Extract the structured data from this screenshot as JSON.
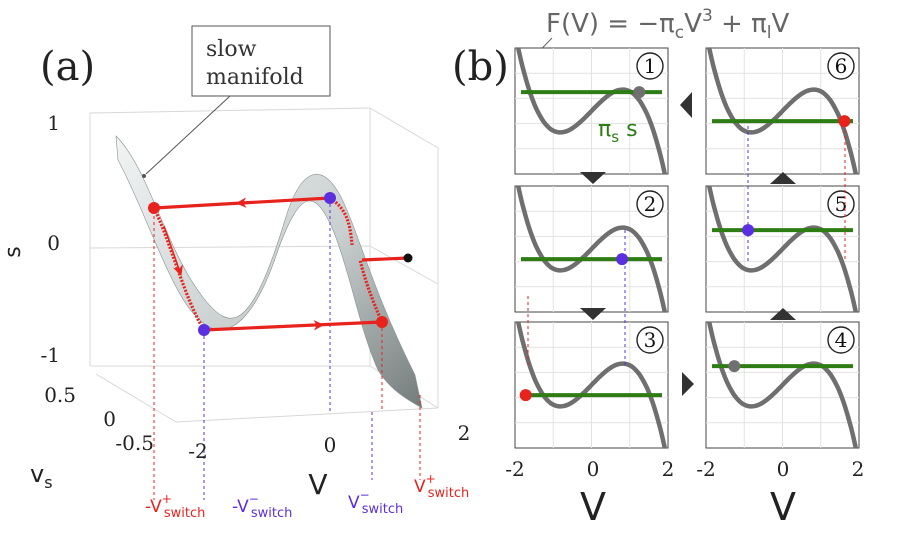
{
  "figure": {
    "panel_a_label": "(a)",
    "panel_b_label": "(b)",
    "formula_parts": {
      "lhs": "F(V) = −π",
      "sub_c": "c",
      "mid": "V",
      "sup3": "3",
      "plus": " + π",
      "sub_l": "l",
      "end": "V"
    },
    "pi_s_label": "π",
    "pi_s_sub": "s",
    "pi_s_after": " s"
  },
  "panel_a": {
    "callout": [
      "slow",
      "manifold"
    ],
    "axes": {
      "z_label": "s",
      "z_ticks": [
        "1",
        "0",
        "-1"
      ],
      "y_label_main": "v",
      "y_label_sub": "s",
      "y_ticks": [
        "0.5",
        "0",
        "-0.5"
      ],
      "x_label": "V",
      "x_ticks": [
        "-2",
        "0",
        "2"
      ]
    },
    "switch_labels": [
      {
        "prefix": "-V",
        "sup": "+",
        "sub": "switch",
        "color": "#e8231d"
      },
      {
        "prefix": "-V",
        "sup": "−",
        "sub": "switch",
        "color": "#5b2fe0"
      },
      {
        "prefix": "V",
        "sup": "−",
        "sub": "switch",
        "color": "#5b2fe0"
      },
      {
        "prefix": "V",
        "sup": "+",
        "sub": "switch",
        "color": "#e8231d"
      }
    ]
  },
  "panel_b": {
    "x_ticks": [
      "-2",
      "0",
      "2"
    ],
    "x_label": "V",
    "subplots": [
      {
        "step": "1",
        "green_level": 0.35,
        "marker_v": 1.25,
        "marker_color": "#707070"
      },
      {
        "step": "2",
        "green_level": 0.58,
        "marker_v": 0.8,
        "marker_color": "#5b2fe0"
      },
      {
        "step": "3",
        "green_level": 0.58,
        "marker_v": -1.72,
        "marker_color": "#e8231d"
      },
      {
        "step": "4",
        "green_level": 0.35,
        "marker_v": -1.26,
        "marker_color": "#707070"
      },
      {
        "step": "5",
        "green_level": 0.35,
        "marker_v": -0.9,
        "marker_color": "#5b2fe0"
      },
      {
        "step": "6",
        "green_level": 0.58,
        "marker_v": 1.62,
        "marker_color": "#e8231d"
      }
    ]
  },
  "colors": {
    "red": "#e8231d",
    "blue": "#5b2fe0",
    "green": "#2e7d14",
    "curve_gray": "#6f6f6f",
    "formula_gray": "#666666"
  }
}
